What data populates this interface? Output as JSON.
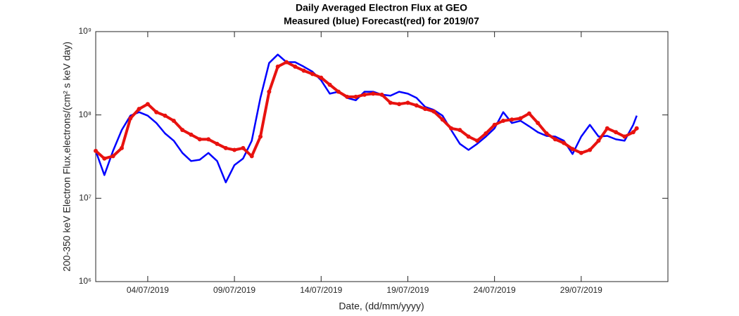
{
  "chart_data": {
    "type": "line",
    "title": "Daily Averaged Electron Flux at GEO",
    "subtitle": "Measured (blue) Forecast(red) for 2019/07",
    "x_label": "Date, (dd/mm/yyyy)",
    "y_label": "200-350 keV Electron Flux,electrons/(cm² s keV day)",
    "x": [
      1.0,
      1.5,
      2.0,
      2.5,
      3.0,
      3.5,
      4.0,
      4.5,
      5.0,
      5.5,
      6.0,
      6.5,
      7.0,
      7.5,
      8.0,
      8.5,
      9.0,
      9.5,
      10.0,
      10.5,
      11.0,
      11.5,
      12.0,
      12.5,
      13.0,
      13.5,
      14.0,
      14.5,
      15.0,
      15.5,
      16.0,
      16.5,
      17.0,
      17.5,
      18.0,
      18.5,
      19.0,
      19.5,
      20.0,
      20.5,
      21.0,
      21.5,
      22.0,
      22.5,
      23.0,
      23.5,
      24.0,
      24.5,
      25.0,
      25.5,
      26.0,
      26.5,
      27.0,
      27.5,
      28.0,
      28.5,
      29.0,
      29.5,
      30.0,
      30.5,
      31.0,
      31.5,
      32.0,
      32.2
    ],
    "series": [
      {
        "name": "Measured",
        "color": "#0000ff",
        "values": [
          37000000.0,
          19000000.0,
          37000000.0,
          66000000.0,
          98000000.0,
          108000000.0,
          98000000.0,
          80000000.0,
          60000000.0,
          49000000.0,
          35000000.0,
          28000000.0,
          29000000.0,
          35000000.0,
          28000000.0,
          15500000.0,
          25000000.0,
          30000000.0,
          49000000.0,
          160000000.0,
          420000000.0,
          530000000.0,
          430000000.0,
          430000000.0,
          380000000.0,
          330000000.0,
          260000000.0,
          180000000.0,
          190000000.0,
          160000000.0,
          150000000.0,
          190000000.0,
          190000000.0,
          175000000.0,
          170000000.0,
          190000000.0,
          180000000.0,
          160000000.0,
          125000000.0,
          115000000.0,
          98000000.0,
          66000000.0,
          45000000.0,
          38000000.0,
          45000000.0,
          55000000.0,
          69000000.0,
          108000000.0,
          80000000.0,
          85000000.0,
          73000000.0,
          62000000.0,
          56000000.0,
          55000000.0,
          49000000.0,
          34000000.0,
          55000000.0,
          76000000.0,
          55000000.0,
          56000000.0,
          51000000.0,
          49000000.0,
          76000000.0,
          98000000.0
        ]
      },
      {
        "name": "Forecast",
        "color": "#e8120f",
        "marker": "o",
        "values": [
          37000000.0,
          30000000.0,
          32000000.0,
          40000000.0,
          91000000.0,
          118000000.0,
          135000000.0,
          108000000.0,
          98000000.0,
          85000000.0,
          66000000.0,
          58000000.0,
          51000000.0,
          51000000.0,
          45000000.0,
          40000000.0,
          38000000.0,
          40000000.0,
          32000000.0,
          55000000.0,
          190000000.0,
          380000000.0,
          430000000.0,
          380000000.0,
          340000000.0,
          310000000.0,
          280000000.0,
          230000000.0,
          190000000.0,
          165000000.0,
          165000000.0,
          175000000.0,
          180000000.0,
          175000000.0,
          140000000.0,
          135000000.0,
          140000000.0,
          130000000.0,
          118000000.0,
          110000000.0,
          88000000.0,
          69000000.0,
          66000000.0,
          55000000.0,
          49000000.0,
          60000000.0,
          76000000.0,
          85000000.0,
          88000000.0,
          91000000.0,
          104000000.0,
          80000000.0,
          60000000.0,
          51000000.0,
          46000000.0,
          39000000.0,
          35000000.0,
          38000000.0,
          49000000.0,
          69000000.0,
          62000000.0,
          55000000.0,
          62000000.0,
          69000000.0
        ]
      }
    ],
    "xlim": [
      1,
      34
    ],
    "xticks": [
      {
        "value": 4,
        "label": "04/07/2019"
      },
      {
        "value": 9,
        "label": "09/07/2019"
      },
      {
        "value": 14,
        "label": "14/07/2019"
      },
      {
        "value": 19,
        "label": "19/07/2019"
      },
      {
        "value": 24,
        "label": "24/07/2019"
      },
      {
        "value": 29,
        "label": "29/07/2019"
      }
    ],
    "ylim": [
      1000000,
      1000000000
    ],
    "ylog": true,
    "yticks": [
      {
        "value": 1000000,
        "label": "10⁶"
      },
      {
        "value": 10000000,
        "label": "10⁷"
      },
      {
        "value": 100000000,
        "label": "10⁸"
      },
      {
        "value": 1000000000,
        "label": "10⁹"
      }
    ],
    "grid": false
  }
}
